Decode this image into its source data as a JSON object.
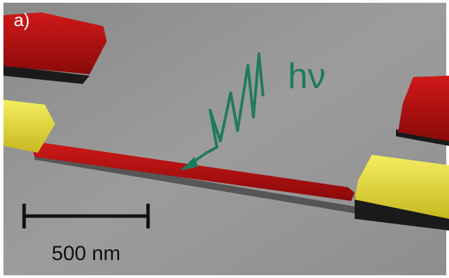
{
  "panel_label": "a)",
  "annotation": "hν",
  "scale_bar": {
    "label": "500 nm"
  }
}
